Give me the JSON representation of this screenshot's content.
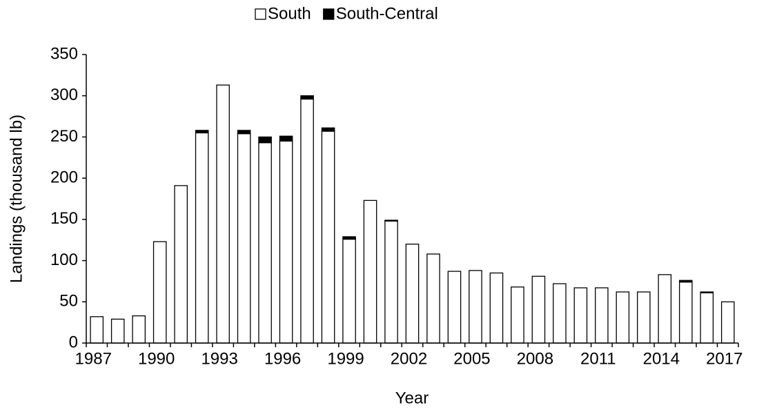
{
  "chart_data": {
    "type": "stacked-bar",
    "x_label": "Year",
    "y_label": "Landings (thousand lb)",
    "categories": [
      "1987",
      null,
      null,
      "1990",
      null,
      null,
      "1993",
      null,
      null,
      "1996",
      null,
      null,
      "1999",
      null,
      null,
      "2002",
      null,
      null,
      "2005",
      null,
      null,
      "2008",
      null,
      null,
      "2011",
      null,
      null,
      "2014",
      null,
      null,
      "2017"
    ],
    "series": [
      {
        "name": "South",
        "color": "#ffffff",
        "values": [
          32,
          29,
          33,
          123,
          191,
          255,
          313,
          254,
          243,
          245,
          296,
          257,
          126,
          173,
          148,
          120,
          108,
          87,
          88,
          85,
          68,
          81,
          72,
          67,
          67,
          62,
          62,
          83,
          74,
          61,
          50
        ]
      },
      {
        "name": "South-Central",
        "color": "#000000",
        "values": [
          0,
          0,
          0,
          0,
          0,
          3,
          0,
          4,
          7,
          6,
          4,
          4,
          3,
          0,
          1,
          0,
          0,
          0,
          0,
          0,
          0,
          0,
          0,
          0,
          0,
          0,
          0,
          0,
          2,
          1,
          0
        ]
      }
    ],
    "ylim": [
      0,
      350
    ],
    "yticks": [
      0,
      50,
      100,
      150,
      200,
      250,
      300,
      350
    ],
    "legend": "top"
  }
}
